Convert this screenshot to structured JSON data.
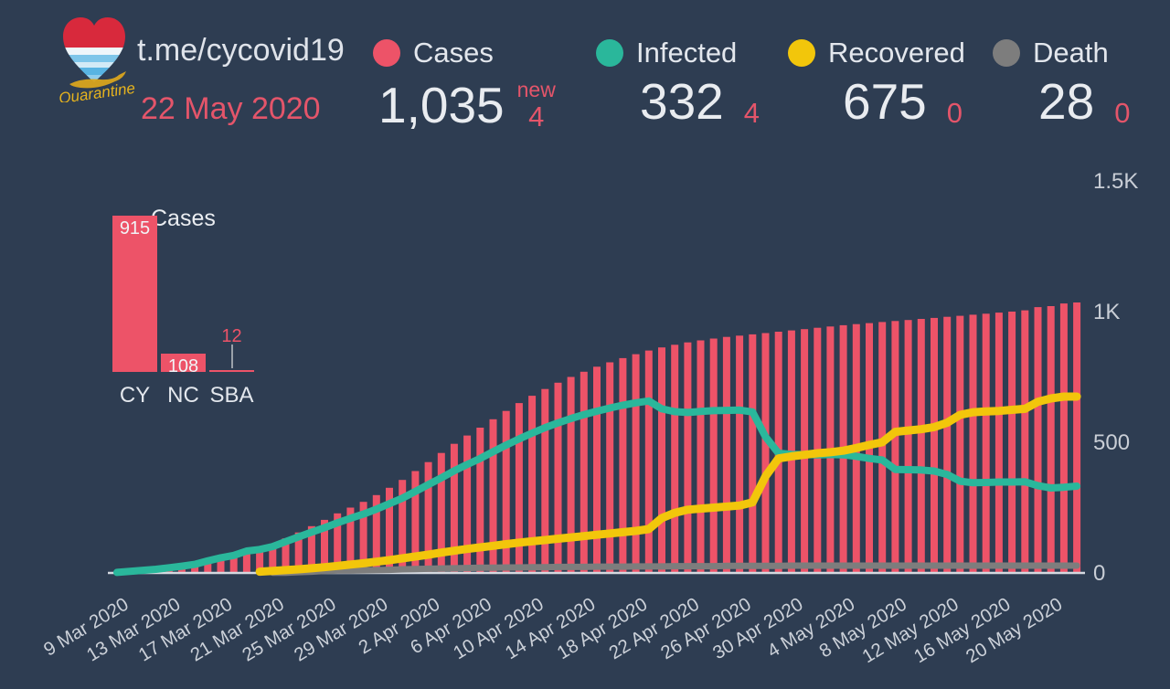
{
  "header": {
    "title": "t.me/cycovid19",
    "date": "22 May 2020",
    "logo_caption": "Quarantine"
  },
  "stats": [
    {
      "label": "Cases",
      "value": "1,035",
      "delta": "4",
      "delta_caption": "new",
      "color": "#ed5368"
    },
    {
      "label": "Infected",
      "value": "332",
      "delta": "4",
      "color": "#2ab79b"
    },
    {
      "label": "Recovered",
      "value": "675",
      "delta": "0",
      "color": "#f2c60b"
    },
    {
      "label": "Death",
      "value": "28",
      "delta": "0",
      "color": "#7d7d7d"
    }
  ],
  "theme": {
    "background": "#2e3d52",
    "bar_color": "#ed5368",
    "infected_color": "#2ab79b",
    "recovered_color": "#f2c60b",
    "death_color": "#7d7d7d",
    "text_light": "#e6e9ee",
    "axis_text": "#c9ced6",
    "accent_red": "#ed5368"
  },
  "chart_data": [
    {
      "id": "covid-timeline",
      "type": "bar",
      "title": "",
      "grid": false,
      "legend_position": "header",
      "ylim": [
        0,
        1500
      ],
      "yticks": [
        {
          "value": 0,
          "label": "0"
        },
        {
          "value": 500,
          "label": "500"
        },
        {
          "value": 1000,
          "label": "1K"
        },
        {
          "value": 1500,
          "label": "1.5K"
        }
      ],
      "xtick_every": 4,
      "x": [
        "9 Mar 2020",
        "10 Mar 2020",
        "11 Mar 2020",
        "12 Mar 2020",
        "13 Mar 2020",
        "14 Mar 2020",
        "15 Mar 2020",
        "16 Mar 2020",
        "17 Mar 2020",
        "18 Mar 2020",
        "19 Mar 2020",
        "20 Mar 2020",
        "21 Mar 2020",
        "22 Mar 2020",
        "23 Mar 2020",
        "24 Mar 2020",
        "25 Mar 2020",
        "26 Mar 2020",
        "27 Mar 2020",
        "28 Mar 2020",
        "29 Mar 2020",
        "30 Mar 2020",
        "31 Mar 2020",
        "1 Apr 2020",
        "2 Apr 2020",
        "3 Apr 2020",
        "4 Apr 2020",
        "5 Apr 2020",
        "6 Apr 2020",
        "7 Apr 2020",
        "8 Apr 2020",
        "9 Apr 2020",
        "10 Apr 2020",
        "11 Apr 2020",
        "12 Apr 2020",
        "13 Apr 2020",
        "14 Apr 2020",
        "15 Apr 2020",
        "16 Apr 2020",
        "17 Apr 2020",
        "18 Apr 2020",
        "19 Apr 2020",
        "20 Apr 2020",
        "21 Apr 2020",
        "22 Apr 2020",
        "23 Apr 2020",
        "24 Apr 2020",
        "25 Apr 2020",
        "26 Apr 2020",
        "27 Apr 2020",
        "28 Apr 2020",
        "29 Apr 2020",
        "30 Apr 2020",
        "1 May 2020",
        "2 May 2020",
        "3 May 2020",
        "4 May 2020",
        "5 May 2020",
        "6 May 2020",
        "7 May 2020",
        "8 May 2020",
        "9 May 2020",
        "10 May 2020",
        "11 May 2020",
        "12 May 2020",
        "13 May 2020",
        "14 May 2020",
        "15 May 2020",
        "16 May 2020",
        "17 May 2020",
        "18 May 2020",
        "19 May 2020",
        "20 May 2020",
        "21 May 2020",
        "22 May 2020"
      ],
      "series": [
        {
          "name": "Cases",
          "type": "bar",
          "color": "#ed5368",
          "values": [
            2,
            6,
            10,
            14,
            20,
            26,
            33,
            46,
            58,
            67,
            84,
            95,
            110,
            132,
            155,
            179,
            203,
            228,
            250,
            272,
            298,
            326,
            356,
            390,
            424,
            459,
            494,
            526,
            556,
            588,
            620,
            650,
            678,
            704,
            728,
            750,
            770,
            789,
            806,
            822,
            837,
            851,
            863,
            873,
            882,
            890,
            897,
            903,
            908,
            913,
            918,
            923,
            928,
            933,
            938,
            943,
            948,
            952,
            956,
            960,
            964,
            968,
            972,
            976,
            980,
            984,
            988,
            992,
            996,
            1000,
            1005,
            1017,
            1021,
            1031,
            1035
          ]
        },
        {
          "name": "Infected",
          "type": "line",
          "color": "#2ab79b",
          "values": [
            2,
            6,
            10,
            14,
            20,
            26,
            33,
            46,
            58,
            67,
            84,
            90,
            101,
            120,
            138,
            156,
            173,
            192,
            209,
            225,
            244,
            265,
            286,
            312,
            338,
            364,
            391,
            415,
            438,
            464,
            489,
            513,
            535,
            556,
            574,
            591,
            606,
            619,
            631,
            642,
            651,
            658,
            628,
            617,
            614,
            618,
            621,
            622,
            623,
            616,
            521,
            458,
            454,
            453,
            452,
            453,
            452,
            446,
            438,
            432,
            396,
            395,
            394,
            390,
            377,
            351,
            345,
            346,
            348,
            348,
            349,
            334,
            325,
            328,
            332
          ]
        },
        {
          "name": "Recovered",
          "type": "line",
          "color": "#f2c60b",
          "values": [
            null,
            null,
            null,
            null,
            null,
            null,
            null,
            null,
            null,
            null,
            null,
            5,
            8,
            11,
            14,
            18,
            22,
            27,
            32,
            37,
            43,
            49,
            56,
            63,
            70,
            78,
            85,
            92,
            98,
            104,
            110,
            116,
            121,
            126,
            131,
            136,
            141,
            146,
            151,
            156,
            161,
            168,
            210,
            230,
            242,
            246,
            250,
            254,
            258,
            270,
            370,
            438,
            446,
            452,
            458,
            462,
            468,
            478,
            490,
            500,
            540,
            545,
            550,
            558,
            575,
            605,
            615,
            618,
            620,
            624,
            628,
            655,
            668,
            675,
            675
          ]
        },
        {
          "name": "Death",
          "type": "line",
          "color": "#7d7d7d",
          "values": [
            null,
            null,
            null,
            null,
            null,
            null,
            null,
            null,
            null,
            null,
            null,
            null,
            1,
            1,
            3,
            5,
            8,
            9,
            9,
            10,
            11,
            12,
            14,
            15,
            16,
            17,
            18,
            19,
            20,
            20,
            21,
            21,
            22,
            22,
            23,
            23,
            23,
            24,
            24,
            24,
            25,
            25,
            25,
            26,
            26,
            26,
            26,
            27,
            27,
            27,
            27,
            27,
            28,
            28,
            28,
            28,
            28,
            28,
            28,
            28,
            28,
            28,
            28,
            28,
            28,
            28,
            28,
            28,
            28,
            28,
            28,
            28,
            28,
            28,
            28
          ]
        }
      ]
    },
    {
      "id": "cases-by-region",
      "type": "bar",
      "title": "Cases",
      "categories": [
        "CY",
        "NC",
        "SBA"
      ],
      "values": [
        915,
        108,
        12
      ],
      "bar_color": "#ed5368"
    }
  ]
}
